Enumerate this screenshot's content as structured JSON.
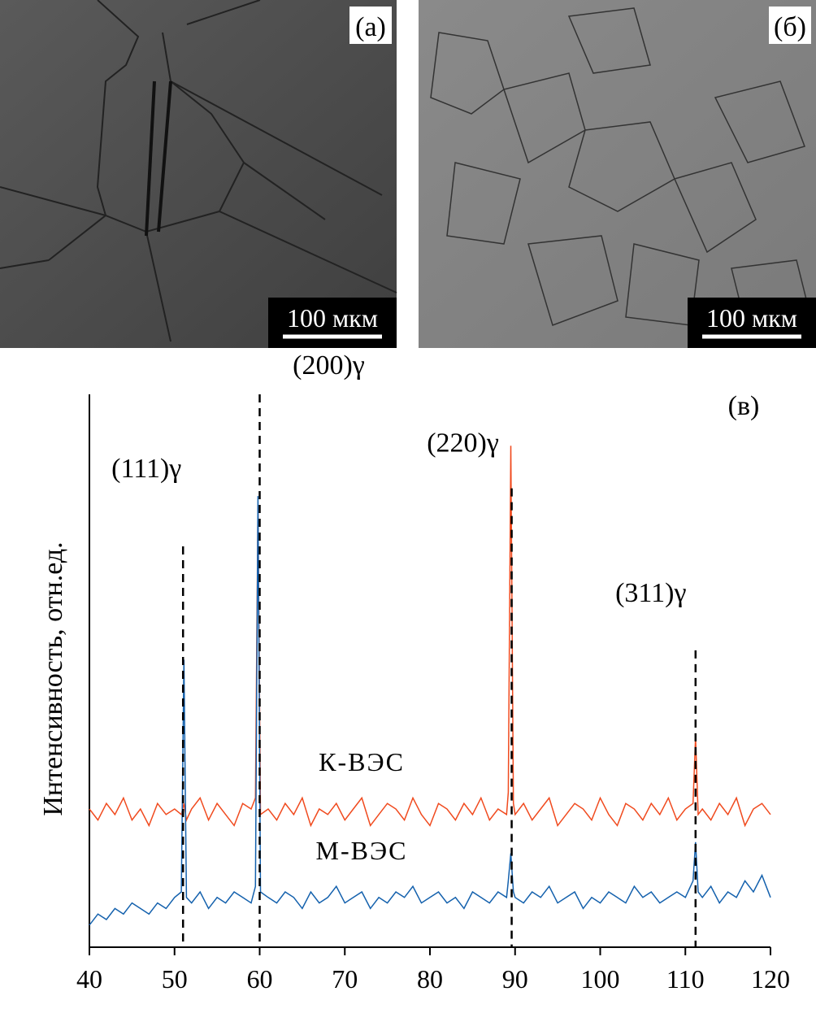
{
  "images": [
    {
      "label": "(а)",
      "scale_bar": "100 мкм"
    },
    {
      "label": "(б)",
      "scale_bar": "100 мкм"
    }
  ],
  "chart_data": {
    "type": "line",
    "label": "(в)",
    "y_label": "Интенсивность, отн.ед.",
    "x": [
      40,
      41,
      42,
      43,
      44,
      45,
      46,
      47,
      48,
      49,
      50,
      50.8,
      51.1,
      51.4,
      52,
      53,
      54,
      55,
      56,
      57,
      58,
      59,
      59.5,
      59.8,
      60.1,
      61,
      62,
      63,
      64,
      65,
      66,
      67,
      68,
      69,
      70,
      71,
      72,
      73,
      74,
      75,
      76,
      77,
      78,
      79,
      80,
      81,
      82,
      83,
      84,
      85,
      86,
      87,
      88,
      89,
      89.2,
      89.5,
      89.8,
      90,
      91,
      92,
      93,
      94,
      95,
      96,
      97,
      98,
      99,
      100,
      101,
      102,
      103,
      104,
      105,
      106,
      107,
      108,
      109,
      110,
      110.9,
      111.2,
      111.5,
      112,
      113,
      114,
      115,
      116,
      117,
      118,
      119,
      120
    ],
    "series": [
      {
        "name": "К-ВЭС",
        "color": "#f04a1e",
        "values": [
          25,
          23,
          26,
          24,
          27,
          23,
          25,
          22,
          26,
          24,
          25,
          24,
          26,
          23,
          25,
          27,
          23,
          26,
          24,
          22,
          26,
          25,
          27,
          80,
          24,
          25,
          23,
          26,
          24,
          27,
          22,
          25,
          24,
          26,
          23,
          25,
          27,
          22,
          24,
          26,
          25,
          23,
          27,
          24,
          22,
          26,
          25,
          23,
          26,
          24,
          27,
          23,
          25,
          24,
          28,
          90.7,
          26,
          24,
          26,
          23,
          25,
          27,
          22,
          24,
          26,
          25,
          23,
          27,
          24,
          22,
          26,
          25,
          23,
          26,
          24,
          27,
          23,
          25,
          26,
          38,
          24,
          25,
          23,
          26,
          24,
          27,
          22,
          25,
          26,
          24
        ]
      },
      {
        "name": "М-ВЭС",
        "color": "#1461ad",
        "values": [
          4,
          6,
          5,
          7,
          6,
          8,
          7,
          6,
          8,
          7,
          9,
          10,
          52,
          9,
          8,
          10,
          7,
          9,
          8,
          10,
          9,
          8,
          11,
          81.6,
          10,
          9,
          8,
          10,
          9,
          7,
          10,
          8,
          9,
          11,
          8,
          9,
          10,
          7,
          9,
          8,
          10,
          9,
          11,
          8,
          9,
          10,
          8,
          9,
          7,
          10,
          9,
          8,
          10,
          9,
          12,
          17,
          10,
          9,
          8,
          10,
          9,
          11,
          8,
          9,
          10,
          7,
          9,
          8,
          10,
          9,
          8,
          11,
          9,
          10,
          8,
          9,
          10,
          9,
          12,
          19,
          10,
          9,
          11,
          8,
          10,
          9,
          12,
          10,
          13,
          9
        ]
      }
    ],
    "reference_lines": [
      {
        "x": 51,
        "ymax": 72.5,
        "label": "(111)γ"
      },
      {
        "x": 60,
        "ymax": 100,
        "label": "(200)γ"
      },
      {
        "x": 89.6,
        "ymax": 83,
        "label": "(220)γ"
      },
      {
        "x": 111.2,
        "ymax": 53.7,
        "label": "(311)γ"
      }
    ],
    "xlim": [
      40,
      120
    ],
    "ylim": [
      0,
      100
    ],
    "xticks": [
      40,
      50,
      60,
      70,
      80,
      90,
      100,
      110,
      120
    ]
  }
}
